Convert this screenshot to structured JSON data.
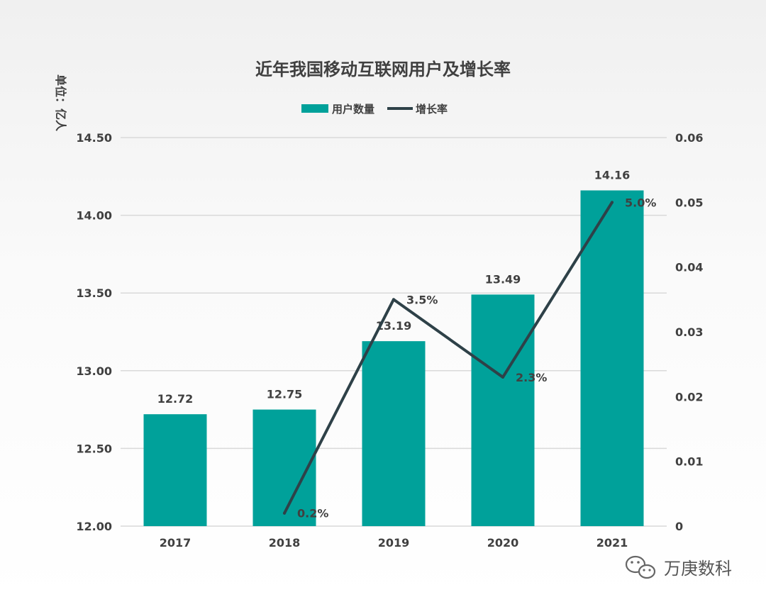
{
  "chart_data": {
    "type": "bar",
    "title": "近年我国移动互联网用户及增长率",
    "ylabel": "单位：亿人",
    "categories": [
      "2017",
      "2018",
      "2019",
      "2020",
      "2021"
    ],
    "series": [
      {
        "name": "用户数量",
        "type": "bar",
        "axis": "left",
        "values": [
          12.72,
          12.75,
          13.19,
          13.49,
          14.16
        ],
        "labels": [
          "12.72",
          "12.75",
          "13.19",
          "13.49",
          "14.16"
        ]
      },
      {
        "name": "增长率",
        "type": "line",
        "axis": "right",
        "values": [
          null,
          0.002,
          0.035,
          0.023,
          0.05
        ],
        "labels": [
          "",
          "0.2%",
          "3.5%",
          "2.3%",
          "5.0%"
        ]
      }
    ],
    "left_axis": {
      "ylim": [
        12.0,
        14.5
      ],
      "ticks": [
        12.0,
        12.5,
        13.0,
        13.5,
        14.0,
        14.5
      ],
      "tick_labels": [
        "12.00",
        "12.50",
        "13.00",
        "13.50",
        "14.00",
        "14.50"
      ]
    },
    "right_axis": {
      "ylim": [
        0,
        0.06
      ],
      "ticks": [
        0,
        0.01,
        0.02,
        0.03,
        0.04,
        0.05,
        0.06
      ],
      "tick_labels": [
        "0",
        "0.01",
        "0.02",
        "0.03",
        "0.04",
        "0.05",
        "0.06"
      ]
    },
    "grid": true,
    "legend_position": "top-center",
    "colors": {
      "bar": "#00a19a",
      "line": "#2e4148",
      "grid": "#d9d9d9",
      "text": "#404040"
    }
  },
  "watermark": {
    "text": "万庚数科",
    "icon": "wechat-icon"
  }
}
